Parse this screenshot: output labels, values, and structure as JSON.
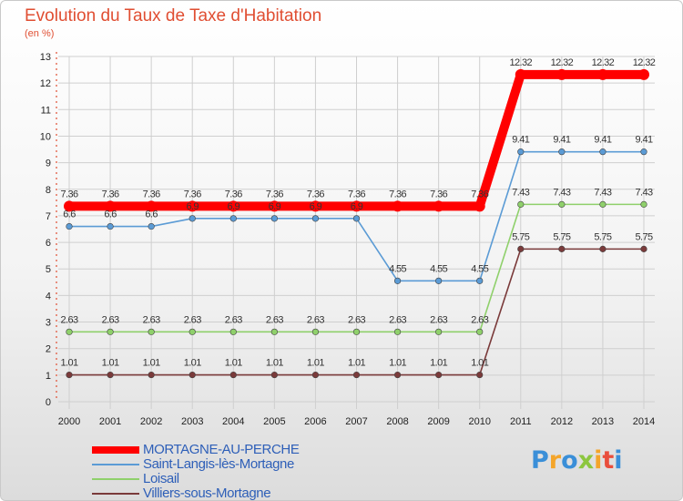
{
  "chart_data": {
    "type": "line",
    "title": "Evolution du Taux de Taxe d'Habitation",
    "subtitle": "(en %)",
    "x": [
      "2000",
      "2001",
      "2002",
      "2003",
      "2004",
      "2005",
      "2006",
      "2007",
      "2008",
      "2009",
      "2010",
      "2011",
      "2012",
      "2013",
      "2014"
    ],
    "ylim": [
      0,
      13
    ],
    "yticks": [
      "0",
      "1",
      "2",
      "3",
      "4",
      "5",
      "6",
      "7",
      "8",
      "9",
      "10",
      "11",
      "12",
      "13"
    ],
    "grid": true,
    "legend_position": "bottom-left",
    "series": [
      {
        "name": "MORTAGNE-AU-PERCHE",
        "color": "#ff0000",
        "values": [
          7.36,
          7.36,
          7.36,
          7.36,
          7.36,
          7.36,
          7.36,
          7.36,
          7.36,
          7.36,
          7.36,
          12.32,
          12.32,
          12.32,
          12.32
        ],
        "labels": [
          "7.36",
          "7.36",
          "7.36",
          "7.36",
          "7.36",
          "7.36",
          "7.36",
          "7.36",
          "7.36",
          "7.36",
          "7.36",
          "12.32",
          "12.32",
          "12.32",
          "12.32"
        ]
      },
      {
        "name": "Saint-Langis-lès-Mortagne",
        "color": "#5b9bd5",
        "values": [
          6.6,
          6.6,
          6.6,
          6.9,
          6.9,
          6.9,
          6.9,
          6.9,
          4.55,
          4.55,
          4.55,
          9.41,
          9.41,
          9.41,
          9.41
        ],
        "labels": [
          "6.6",
          "6.6",
          "6.6",
          "6.9",
          "6.9",
          "6.9",
          "6.9",
          "6.9",
          "4.55",
          "4.55",
          "4.55",
          "9.41",
          "9.41",
          "9.41",
          "9.41"
        ]
      },
      {
        "name": "Loisail",
        "color": "#8fd06b",
        "values": [
          2.63,
          2.63,
          2.63,
          2.63,
          2.63,
          2.63,
          2.63,
          2.63,
          2.63,
          2.63,
          2.63,
          7.43,
          7.43,
          7.43,
          7.43
        ],
        "labels": [
          "2.63",
          "2.63",
          "2.63",
          "2.63",
          "2.63",
          "2.63",
          "2.63",
          "2.63",
          "2.63",
          "2.63",
          "2.63",
          "7.43",
          "7.43",
          "7.43",
          "7.43"
        ]
      },
      {
        "name": "Villiers-sous-Mortagne",
        "color": "#7a3a3a",
        "values": [
          1.01,
          1.01,
          1.01,
          1.01,
          1.01,
          1.01,
          1.01,
          1.01,
          1.01,
          1.01,
          1.01,
          5.75,
          5.75,
          5.75,
          5.75
        ],
        "labels": [
          "1.01",
          "1.01",
          "1.01",
          "1.01",
          "1.01",
          "1.01",
          "1.01",
          "1.01",
          "1.01",
          "1.01",
          "1.01",
          "5.75",
          "5.75",
          "5.75",
          "5.75"
        ]
      }
    ]
  },
  "logo": {
    "text": "Proxiti",
    "colors": [
      "#3a8fd8",
      "#f4a52a",
      "#3a8fd8",
      "#8cc63f",
      "#f4a52a",
      "#e94e3c",
      "#3a8fd8"
    ]
  }
}
